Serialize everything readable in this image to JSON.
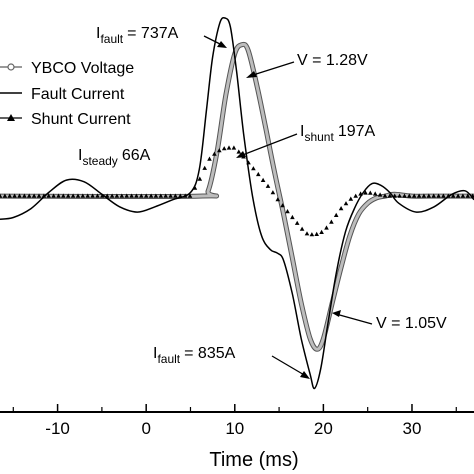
{
  "chart_data": {
    "type": "line",
    "xlabel": "Time (ms)",
    "ylabel": "",
    "xlim": [
      -16.5,
      37
    ],
    "ylim": [
      -1.1,
      1.0
    ],
    "xticks": [
      -10,
      0,
      10,
      20,
      30
    ],
    "tick_labels": [
      "-10",
      "0",
      "10",
      "20",
      "30"
    ],
    "legend_position": "top-left",
    "series": [
      {
        "name": "YBCO Voltage",
        "color": "#9a9a9a",
        "x": [
          -16.5,
          6.0,
          7.0,
          8.0,
          9.0,
          10.0,
          10.8,
          11.5,
          12.5,
          13.5,
          14.5,
          15.5,
          16.5,
          17.5,
          18.5,
          19.3,
          20.0,
          21.0,
          22.0,
          23.0,
          24.0,
          25.0,
          26.0,
          27.0,
          28.0,
          30.0,
          33.0,
          37.0
        ],
        "y": [
          0.0,
          0.0,
          0.03,
          0.25,
          0.57,
          0.8,
          0.85,
          0.82,
          0.62,
          0.38,
          0.13,
          -0.1,
          -0.35,
          -0.6,
          -0.8,
          -0.86,
          -0.8,
          -0.6,
          -0.4,
          -0.22,
          -0.1,
          -0.04,
          -0.01,
          0.0,
          0.01,
          0.0,
          0.0,
          0.0
        ]
      },
      {
        "name": "Fault Current",
        "color": "#000000",
        "x": [
          -16.5,
          -15.0,
          -13.0,
          -11.0,
          -9.0,
          -7.0,
          -5.0,
          -3.0,
          -1.0,
          1.0,
          3.0,
          5.0,
          6.0,
          6.8,
          7.5,
          8.3,
          8.9,
          9.5,
          10.2,
          11.0,
          12.0,
          13.0,
          14.0,
          14.8,
          15.5,
          16.5,
          17.5,
          18.5,
          19.0,
          19.7,
          20.5,
          21.5,
          22.5,
          23.5,
          24.5,
          25.5,
          26.5,
          27.5,
          28.5,
          30.5,
          32.5,
          34.5,
          36.0,
          37.0
        ],
        "y": [
          -0.13,
          -0.12,
          -0.07,
          0.02,
          0.09,
          0.08,
          0.01,
          -0.06,
          -0.09,
          -0.06,
          -0.02,
          0.02,
          0.15,
          0.48,
          0.78,
          0.97,
          1.0,
          0.95,
          0.7,
          0.35,
          0.0,
          -0.22,
          -0.3,
          -0.32,
          -0.36,
          -0.55,
          -0.8,
          -1.0,
          -1.08,
          -0.97,
          -0.72,
          -0.42,
          -0.2,
          -0.07,
          0.02,
          0.07,
          0.06,
          0.02,
          -0.04,
          -0.09,
          -0.06,
          0.01,
          0.03,
          -0.02
        ]
      },
      {
        "name": "Shunt Current",
        "color": "#000000",
        "x": [
          -16.5,
          5.0,
          6.0,
          7.0,
          8.0,
          9.0,
          10.0,
          11.0,
          12.0,
          13.0,
          14.0,
          15.0,
          16.0,
          17.0,
          18.0,
          19.0,
          20.0,
          21.0,
          22.0,
          23.0,
          24.0,
          25.0,
          26.0,
          27.0,
          28.0,
          30.0,
          33.0,
          37.0
        ],
        "y": [
          0.0,
          0.0,
          0.09,
          0.2,
          0.25,
          0.27,
          0.27,
          0.22,
          0.16,
          0.1,
          0.04,
          -0.03,
          -0.09,
          -0.15,
          -0.21,
          -0.22,
          -0.2,
          -0.14,
          -0.07,
          -0.02,
          0.01,
          0.02,
          0.01,
          0.0,
          0.0,
          0.0,
          0.0,
          0.0
        ]
      }
    ],
    "annotations": {
      "i_fault_top": {
        "base": "I",
        "sub": "fault",
        "value": "= 737A"
      },
      "v_top": "V = 1.28V",
      "i_shunt": {
        "base": "I",
        "sub": "shunt",
        "value": "197A"
      },
      "i_steady": {
        "base": "I",
        "sub": "steady",
        "value": "66A"
      },
      "v_bottom": "V = 1.05V",
      "i_fault_bottom": {
        "base": "I",
        "sub": "fault",
        "value": "= 835A"
      }
    }
  }
}
